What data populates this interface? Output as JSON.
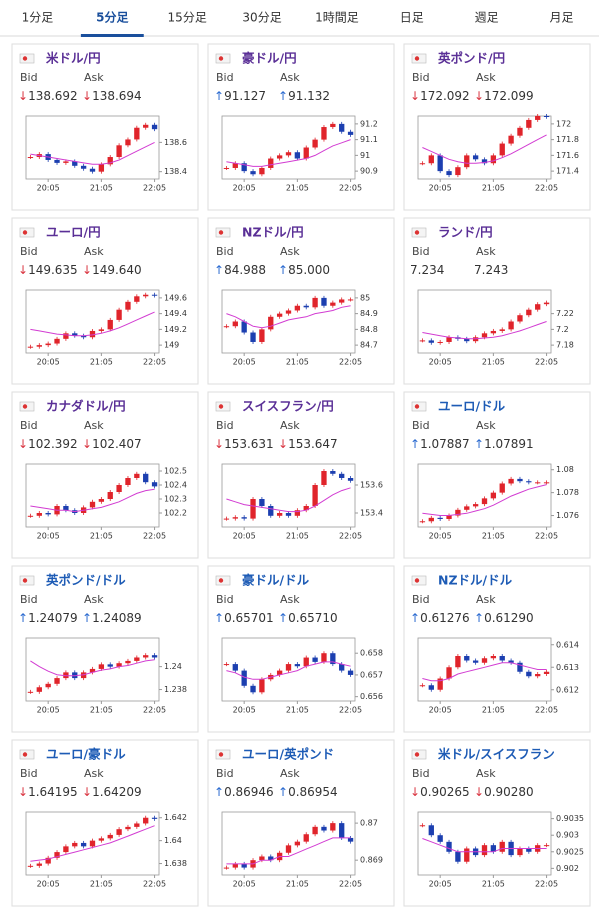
{
  "tabs": [
    "1分足",
    "5分足",
    "15分足",
    "30分足",
    "1時間足",
    "日足",
    "週足",
    "月足"
  ],
  "active_tab": 1,
  "labels": {
    "bid": "Bid",
    "ask": "Ask"
  },
  "pairs": [
    {
      "name": "米ドル/円",
      "bid_arrow": "↓",
      "bid": "138.692",
      "ask_arrow": "↓",
      "ask": "138.694",
      "chart": {
        "ylim": [
          138.35,
          138.78
        ],
        "yticks": [
          138.4,
          138.6
        ],
        "xticks": [
          {
            "value": 2,
            "label": "20:05"
          },
          {
            "value": 8,
            "label": "21:05"
          },
          {
            "value": 14,
            "label": "22:05"
          }
        ],
        "close": [
          138.5,
          138.52,
          138.48,
          138.46,
          138.47,
          138.44,
          138.42,
          138.4,
          138.45,
          138.5,
          138.58,
          138.62,
          138.7,
          138.72,
          138.69
        ],
        "ma": [
          138.52,
          138.51,
          138.5,
          138.49,
          138.48,
          138.47,
          138.46,
          138.45,
          138.45,
          138.46,
          138.48,
          138.51,
          138.54,
          138.57,
          138.6
        ]
      }
    },
    {
      "name": "豪ドル/円",
      "bid_arrow": "↑",
      "bid": "91.127",
      "ask_arrow": "↑",
      "ask": "91.132",
      "chart": {
        "ylim": [
          90.85,
          91.25
        ],
        "yticks": [
          90.9,
          91,
          91.1,
          91.2
        ],
        "xticks": [
          {
            "value": 2,
            "label": "20:05"
          },
          {
            "value": 8,
            "label": "21:05"
          },
          {
            "value": 14,
            "label": "22:05"
          }
        ],
        "close": [
          90.92,
          90.95,
          90.9,
          90.88,
          90.92,
          90.98,
          91,
          91.02,
          90.98,
          91.05,
          91.1,
          91.18,
          91.2,
          91.15,
          91.13
        ],
        "ma": [
          90.96,
          90.95,
          90.94,
          90.93,
          90.93,
          90.94,
          90.95,
          90.96,
          90.97,
          90.98,
          91,
          91.03,
          91.06,
          91.08,
          91.1
        ]
      }
    },
    {
      "name": "英ポンド/円",
      "bid_arrow": "↓",
      "bid": "172.092",
      "ask_arrow": "↓",
      "ask": "172.099",
      "chart": {
        "ylim": [
          171.3,
          172.1
        ],
        "yticks": [
          171.4,
          171.6,
          171.8,
          172
        ],
        "xticks": [
          {
            "value": 2,
            "label": "20:05"
          },
          {
            "value": 8,
            "label": "21:05"
          },
          {
            "value": 14,
            "label": "22:05"
          }
        ],
        "close": [
          171.5,
          171.6,
          171.4,
          171.35,
          171.45,
          171.6,
          171.55,
          171.5,
          171.6,
          171.75,
          171.85,
          171.95,
          172.05,
          172.1,
          172.09
        ],
        "ma": [
          171.7,
          171.65,
          171.6,
          171.55,
          171.52,
          171.5,
          171.5,
          171.51,
          171.53,
          171.57,
          171.62,
          171.68,
          171.74,
          171.8,
          171.86
        ]
      }
    },
    {
      "name": "ユーロ/円",
      "bid_arrow": "↓",
      "bid": "149.635",
      "ask_arrow": "↓",
      "ask": "149.640",
      "chart": {
        "ylim": [
          148.9,
          149.7
        ],
        "yticks": [
          149,
          149.2,
          149.4,
          149.6
        ],
        "xticks": [
          {
            "value": 2,
            "label": "20:05"
          },
          {
            "value": 8,
            "label": "21:05"
          },
          {
            "value": 14,
            "label": "22:05"
          }
        ],
        "close": [
          148.98,
          149,
          149.02,
          149.08,
          149.15,
          149.12,
          149.1,
          149.18,
          149.2,
          149.32,
          149.45,
          149.55,
          149.62,
          149.64,
          149.63
        ],
        "ma": [
          149.2,
          149.18,
          149.16,
          149.14,
          149.13,
          149.12,
          149.12,
          149.13,
          149.15,
          149.18,
          149.22,
          149.27,
          149.32,
          149.37,
          149.42
        ]
      }
    },
    {
      "name": "NZドル/円",
      "bid_arrow": "↑",
      "bid": "84.988",
      "ask_arrow": "↑",
      "ask": "85.000",
      "chart": {
        "ylim": [
          84.65,
          85.05
        ],
        "yticks": [
          84.7,
          84.8,
          84.9,
          85
        ],
        "xticks": [
          {
            "value": 2,
            "label": "20:05"
          },
          {
            "value": 8,
            "label": "21:05"
          },
          {
            "value": 14,
            "label": "22:05"
          }
        ],
        "close": [
          84.82,
          84.85,
          84.78,
          84.72,
          84.8,
          84.88,
          84.9,
          84.92,
          84.95,
          84.94,
          85,
          84.95,
          84.97,
          84.99,
          84.99
        ],
        "ma": [
          84.9,
          84.88,
          84.85,
          84.82,
          84.81,
          84.82,
          84.84,
          84.86,
          84.87,
          84.88,
          84.9,
          84.91,
          84.92,
          84.94,
          84.95
        ]
      }
    },
    {
      "name": "ランド/円",
      "bid_arrow": "",
      "bid": "7.234",
      "ask_arrow": "",
      "ask": "7.243",
      "chart": {
        "ylim": [
          7.17,
          7.25
        ],
        "yticks": [
          7.18,
          7.2,
          7.22
        ],
        "xticks": [
          {
            "value": 2,
            "label": "20:05"
          },
          {
            "value": 8,
            "label": "21:05"
          },
          {
            "value": 14,
            "label": "22:05"
          }
        ],
        "close": [
          7.186,
          7.183,
          7.184,
          7.19,
          7.188,
          7.185,
          7.19,
          7.195,
          7.198,
          7.2,
          7.21,
          7.218,
          7.225,
          7.232,
          7.234
        ],
        "ma": [
          7.196,
          7.194,
          7.192,
          7.19,
          7.189,
          7.188,
          7.188,
          7.189,
          7.19,
          7.192,
          7.195,
          7.198,
          7.202,
          7.206,
          7.21
        ]
      }
    },
    {
      "name": "カナダドル/円",
      "bid_arrow": "↓",
      "bid": "102.392",
      "ask_arrow": "↓",
      "ask": "102.407",
      "chart": {
        "ylim": [
          102.1,
          102.55
        ],
        "yticks": [
          102.2,
          102.3,
          102.4,
          102.5
        ],
        "xticks": [
          {
            "value": 2,
            "label": "20:05"
          },
          {
            "value": 8,
            "label": "21:05"
          },
          {
            "value": 14,
            "label": "22:05"
          }
        ],
        "close": [
          102.18,
          102.2,
          102.19,
          102.25,
          102.22,
          102.2,
          102.24,
          102.28,
          102.3,
          102.35,
          102.4,
          102.45,
          102.48,
          102.42,
          102.39
        ],
        "ma": [
          102.25,
          102.24,
          102.23,
          102.22,
          102.22,
          102.21,
          102.22,
          102.23,
          102.24,
          102.26,
          102.28,
          102.31,
          102.34,
          102.36,
          102.37
        ]
      }
    },
    {
      "name": "スイスフラン/円",
      "bid_arrow": "↓",
      "bid": "153.631",
      "ask_arrow": "↓",
      "ask": "153.647",
      "chart": {
        "ylim": [
          153.3,
          153.75
        ],
        "yticks": [
          153.4,
          153.6
        ],
        "xticks": [
          {
            "value": 2,
            "label": "20:05"
          },
          {
            "value": 8,
            "label": "21:05"
          },
          {
            "value": 14,
            "label": "22:05"
          }
        ],
        "close": [
          153.36,
          153.37,
          153.36,
          153.5,
          153.45,
          153.38,
          153.4,
          153.38,
          153.42,
          153.45,
          153.6,
          153.7,
          153.68,
          153.65,
          153.63
        ],
        "ma": [
          153.5,
          153.48,
          153.46,
          153.45,
          153.44,
          153.43,
          153.42,
          153.41,
          153.41,
          153.42,
          153.45,
          153.49,
          153.53,
          153.56,
          153.58
        ]
      }
    },
    {
      "name": "ユーロ/ドル",
      "bid_arrow": "↑",
      "bid": "1.07887",
      "ask_arrow": "↑",
      "ask": "1.07891",
      "chart": {
        "ylim": [
          1.075,
          1.0805
        ],
        "yticks": [
          1.076,
          1.078,
          1.08
        ],
        "xticks": [
          {
            "value": 2,
            "label": "20:05"
          },
          {
            "value": 8,
            "label": "21:05"
          },
          {
            "value": 14,
            "label": "22:05"
          }
        ],
        "close": [
          1.0755,
          1.0758,
          1.0757,
          1.076,
          1.0765,
          1.0768,
          1.077,
          1.0775,
          1.078,
          1.0788,
          1.0792,
          1.079,
          1.0789,
          1.0789,
          1.0789
        ],
        "ma": [
          1.0762,
          1.0761,
          1.076,
          1.076,
          1.0761,
          1.0762,
          1.0764,
          1.0766,
          1.0769,
          1.0773,
          1.0777,
          1.078,
          1.0783,
          1.0785,
          1.0787
        ]
      }
    },
    {
      "name": "英ポンド/ドル",
      "bid_arrow": "↑",
      "bid": "1.24079",
      "ask_arrow": "↑",
      "ask": "1.24089",
      "chart": {
        "ylim": [
          1.237,
          1.2425
        ],
        "yticks": [
          1.238,
          1.24
        ],
        "xticks": [
          {
            "value": 2,
            "label": "20:05"
          },
          {
            "value": 8,
            "label": "21:05"
          },
          {
            "value": 14,
            "label": "22:05"
          }
        ],
        "close": [
          1.2378,
          1.2382,
          1.2385,
          1.239,
          1.2395,
          1.239,
          1.2395,
          1.2398,
          1.2402,
          1.24,
          1.2403,
          1.2405,
          1.2408,
          1.241,
          1.2408
        ],
        "ma": [
          1.2405,
          1.24,
          1.2396,
          1.2393,
          1.2392,
          1.2392,
          1.2393,
          1.2395,
          1.2397,
          1.2398,
          1.24,
          1.2401,
          1.2403,
          1.2405,
          1.2406
        ]
      }
    },
    {
      "name": "豪ドル/ドル",
      "bid_arrow": "↑",
      "bid": "0.65701",
      "ask_arrow": "↑",
      "ask": "0.65710",
      "chart": {
        "ylim": [
          0.6558,
          0.6587
        ],
        "yticks": [
          0.656,
          0.657,
          0.658
        ],
        "xticks": [
          {
            "value": 2,
            "label": "20:05"
          },
          {
            "value": 8,
            "label": "21:05"
          },
          {
            "value": 14,
            "label": "22:05"
          }
        ],
        "close": [
          0.6575,
          0.6572,
          0.6565,
          0.6562,
          0.6568,
          0.657,
          0.6572,
          0.6575,
          0.6574,
          0.6578,
          0.6576,
          0.658,
          0.6575,
          0.6572,
          0.657
        ],
        "ma": [
          0.6572,
          0.6571,
          0.6569,
          0.6568,
          0.6568,
          0.6569,
          0.657,
          0.6571,
          0.6572,
          0.6574,
          0.6575,
          0.6576,
          0.6576,
          0.6575,
          0.6574
        ]
      }
    },
    {
      "name": "NZドル/ドル",
      "bid_arrow": "↑",
      "bid": "0.61276",
      "ask_arrow": "↑",
      "ask": "0.61290",
      "chart": {
        "ylim": [
          0.6115,
          0.6143
        ],
        "yticks": [
          0.612,
          0.613,
          0.614
        ],
        "xticks": [
          {
            "value": 2,
            "label": "20:05"
          },
          {
            "value": 8,
            "label": "21:05"
          },
          {
            "value": 14,
            "label": "22:05"
          }
        ],
        "close": [
          0.6122,
          0.612,
          0.6125,
          0.613,
          0.6135,
          0.6133,
          0.6132,
          0.6134,
          0.6135,
          0.6133,
          0.6132,
          0.6128,
          0.6126,
          0.6127,
          0.6128
        ],
        "ma": [
          0.6125,
          0.6124,
          0.6124,
          0.6125,
          0.6127,
          0.6128,
          0.6129,
          0.613,
          0.6131,
          0.6132,
          0.6132,
          0.6131,
          0.613,
          0.6129,
          0.6129
        ]
      }
    },
    {
      "name": "ユーロ/豪ドル",
      "bid_arrow": "↓",
      "bid": "1.64195",
      "ask_arrow": "↓",
      "ask": "1.64209",
      "chart": {
        "ylim": [
          1.637,
          1.6425
        ],
        "yticks": [
          1.638,
          1.64,
          1.642
        ],
        "xticks": [
          {
            "value": 2,
            "label": "20:05"
          },
          {
            "value": 8,
            "label": "21:05"
          },
          {
            "value": 14,
            "label": "22:05"
          }
        ],
        "close": [
          1.6378,
          1.638,
          1.6385,
          1.639,
          1.6395,
          1.6398,
          1.6395,
          1.64,
          1.6402,
          1.6405,
          1.641,
          1.6412,
          1.6415,
          1.642,
          1.6419
        ],
        "ma": [
          1.6382,
          1.6383,
          1.6384,
          1.6386,
          1.6388,
          1.639,
          1.6392,
          1.6394,
          1.6396,
          1.6398,
          1.6401,
          1.6404,
          1.6407,
          1.641,
          1.6413
        ]
      }
    },
    {
      "name": "ユーロ/英ポンド",
      "bid_arrow": "↑",
      "bid": "0.86946",
      "ask_arrow": "↑",
      "ask": "0.86954",
      "chart": {
        "ylim": [
          0.8686,
          0.8703
        ],
        "yticks": [
          0.869,
          0.87
        ],
        "xticks": [
          {
            "value": 2,
            "label": "20:05"
          },
          {
            "value": 8,
            "label": "21:05"
          },
          {
            "value": 14,
            "label": "22:05"
          }
        ],
        "close": [
          0.8688,
          0.8689,
          0.8688,
          0.869,
          0.8691,
          0.869,
          0.8692,
          0.8694,
          0.8695,
          0.8697,
          0.8699,
          0.8698,
          0.87,
          0.8696,
          0.8695
        ],
        "ma": [
          0.8689,
          0.8689,
          0.8689,
          0.8689,
          0.869,
          0.869,
          0.8691,
          0.8691,
          0.8692,
          0.8693,
          0.8694,
          0.8695,
          0.8696,
          0.8696,
          0.8696
        ]
      }
    },
    {
      "name": "米ドル/スイスフラン",
      "bid_arrow": "↓",
      "bid": "0.90265",
      "ask_arrow": "↓",
      "ask": "0.90280",
      "chart": {
        "ylim": [
          0.9018,
          0.9037
        ],
        "yticks": [
          0.902,
          0.9025,
          0.903,
          0.9035
        ],
        "xticks": [
          {
            "value": 2,
            "label": "20:05"
          },
          {
            "value": 8,
            "label": "21:05"
          },
          {
            "value": 14,
            "label": "22:05"
          }
        ],
        "close": [
          0.9033,
          0.903,
          0.9028,
          0.9025,
          0.9022,
          0.9026,
          0.9024,
          0.9027,
          0.9025,
          0.9028,
          0.9024,
          0.9026,
          0.9025,
          0.9027,
          0.9027
        ],
        "ma": [
          0.9029,
          0.9028,
          0.9027,
          0.9026,
          0.9025,
          0.9025,
          0.9025,
          0.9025,
          0.9025,
          0.9026,
          0.9026,
          0.9026,
          0.9026,
          0.9026,
          0.9026
        ]
      }
    }
  ]
}
